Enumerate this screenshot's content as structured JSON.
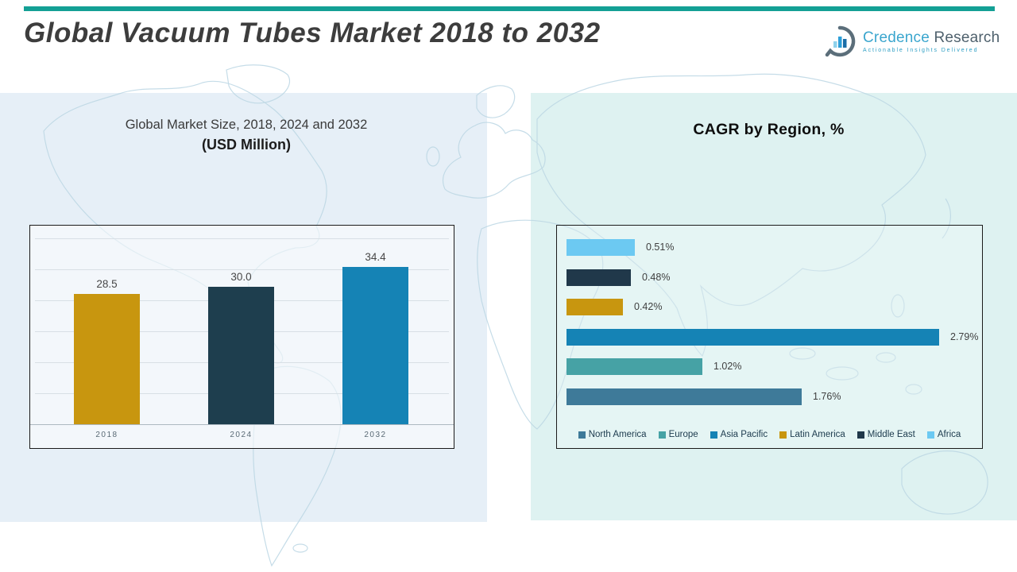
{
  "header": {
    "title": "Global Vacuum Tubes Market 2018 to 2032",
    "accent_bar_color": "#14A095",
    "logo": {
      "brand_primary": "Credence",
      "brand_secondary": "Research",
      "tagline": "Actionable Insights Delivered",
      "brand_primary_color": "#3BA6CE",
      "brand_secondary_color": "#4F616D"
    }
  },
  "left_section": {
    "heading_line1": "Global Market Size, 2018, 2024 and 2032",
    "heading_line2": "(USD Million)",
    "panel_color": "#E6EFF7"
  },
  "right_section": {
    "heading": "CAGR by Region, %",
    "panel_color": "#DEF2F1"
  },
  "chart_data": [
    {
      "type": "bar",
      "orientation": "vertical",
      "title": "Global Market Size, 2018, 2024 and 2032 (USD Million)",
      "categories": [
        "2018",
        "2024",
        "2032"
      ],
      "values": [
        28.5,
        30.0,
        34.4
      ],
      "data_labels": [
        "28.5",
        "30.0",
        "34.4"
      ],
      "colors": [
        "#C8960F",
        "#1E3E4E",
        "#1583B5"
      ],
      "ylim": [
        0,
        40
      ],
      "grid": true,
      "legend_position": "none"
    },
    {
      "type": "bar",
      "orientation": "horizontal",
      "title": "CAGR by Region, %",
      "categories_top_to_bottom": [
        "Africa",
        "Middle East",
        "Latin America",
        "Asia Pacific",
        "Europe",
        "North America"
      ],
      "values": [
        0.51,
        0.48,
        0.42,
        2.79,
        1.02,
        1.76
      ],
      "data_labels": [
        "0.51%",
        "0.48%",
        "0.42%",
        "2.79%",
        "1.02%",
        "1.76%"
      ],
      "colors": [
        "#6CC9F2",
        "#20384A",
        "#C8960F",
        "#1583B5",
        "#46A2A5",
        "#3E7A99"
      ],
      "xlim": [
        0,
        3
      ],
      "grid": false,
      "legend_position": "bottom",
      "legend": [
        {
          "label": "North America",
          "color": "#3E7A99"
        },
        {
          "label": "Europe",
          "color": "#46A2A5"
        },
        {
          "label": "Asia Pacific",
          "color": "#1583B5"
        },
        {
          "label": "Latin America",
          "color": "#C8960F"
        },
        {
          "label": "Middle East",
          "color": "#20384A"
        },
        {
          "label": "Africa",
          "color": "#6CC9F2"
        }
      ]
    }
  ]
}
